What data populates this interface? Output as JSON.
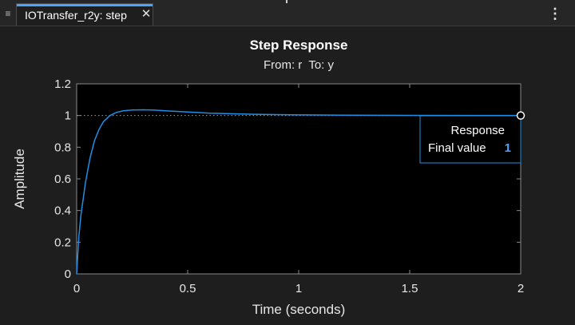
{
  "window": {
    "tab_handle_icon": "drag-handle-icon",
    "tab_label": "IOTransfer_r2y: step",
    "close_symbol": "✕",
    "menu_symbol": "⋮"
  },
  "colors": {
    "background": "#1e1e1e",
    "axes_background": "#000000",
    "curve": "#1f8fe5",
    "accent": "#4aa3ff",
    "text": "#e6e6e6"
  },
  "chart_data": {
    "type": "line",
    "title": "Step Response",
    "subtitle": "From: r  To: y",
    "xlabel": "Time (seconds)",
    "ylabel": "Amplitude",
    "xlim": [
      0,
      2
    ],
    "ylim": [
      0,
      1.2
    ],
    "xticks": [
      "0",
      "0.5",
      "1",
      "1.5",
      "2"
    ],
    "yticks": [
      "0",
      "0.2",
      "0.4",
      "0.6",
      "0.8",
      "1",
      "1.2"
    ],
    "steady_state_reference": 1,
    "series": [
      {
        "x": [
          0,
          0.01,
          0.02,
          0.04,
          0.06,
          0.08,
          0.1,
          0.12,
          0.15,
          0.18,
          0.21,
          0.25,
          0.3,
          0.35,
          0.4,
          0.5,
          0.6,
          0.8,
          1.0,
          1.2,
          1.5,
          1.8,
          2.0
        ],
        "y": [
          0,
          0.24,
          0.38,
          0.58,
          0.73,
          0.84,
          0.91,
          0.96,
          1.0,
          1.02,
          1.03,
          1.035,
          1.036,
          1.034,
          1.03,
          1.022,
          1.015,
          1.008,
          1.004,
          1.002,
          1.001,
          1.0,
          1.0
        ]
      }
    ],
    "datatip": {
      "title": "Response",
      "label": "Final value",
      "value": "1",
      "x": 2,
      "y": 1
    }
  }
}
